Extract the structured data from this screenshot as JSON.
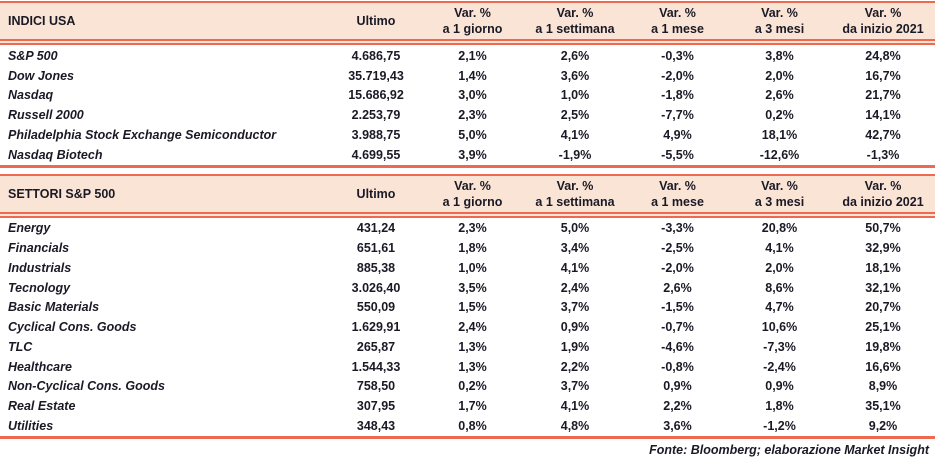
{
  "colors": {
    "header_bg": "#FAE4D5",
    "rule": "#ED6A51",
    "text": "#1A1A26"
  },
  "footer": {
    "source_note": "Fonte: Bloomberg; elaborazione Market Insight"
  },
  "chart_data": [
    {
      "type": "table",
      "title": "INDICI USA",
      "ultimo_label": "Ultimo",
      "var_columns": [
        {
          "line1": "Var. %",
          "line2": "a 1 giorno"
        },
        {
          "line1": "Var. %",
          "line2": "a 1 settimana"
        },
        {
          "line1": "Var. %",
          "line2": "a 1 mese"
        },
        {
          "line1": "Var. %",
          "line2": "a 3 mesi"
        },
        {
          "line1": "Var. %",
          "line2": "da inizio 2021"
        }
      ],
      "rows": [
        {
          "label": "S&P 500",
          "ultimo": "4.686,75",
          "values": [
            "2,1%",
            "2,6%",
            "-0,3%",
            "3,8%",
            "24,8%"
          ]
        },
        {
          "label": "Dow Jones",
          "ultimo": "35.719,43",
          "values": [
            "1,4%",
            "3,6%",
            "-2,0%",
            "2,0%",
            "16,7%"
          ]
        },
        {
          "label": "Nasdaq",
          "ultimo": "15.686,92",
          "values": [
            "3,0%",
            "1,0%",
            "-1,8%",
            "2,6%",
            "21,7%"
          ]
        },
        {
          "label": "Russell 2000",
          "ultimo": "2.253,79",
          "values": [
            "2,3%",
            "2,5%",
            "-7,7%",
            "0,2%",
            "14,1%"
          ]
        },
        {
          "label": "Philadelphia Stock Exchange Semiconductor",
          "ultimo": "3.988,75",
          "values": [
            "5,0%",
            "4,1%",
            "4,9%",
            "18,1%",
            "42,7%"
          ]
        },
        {
          "label": "Nasdaq Biotech",
          "ultimo": "4.699,55",
          "values": [
            "3,9%",
            "-1,9%",
            "-5,5%",
            "-12,6%",
            "-1,3%"
          ]
        }
      ]
    },
    {
      "type": "table",
      "title": "SETTORI S&P 500",
      "ultimo_label": "Ultimo",
      "var_columns": [
        {
          "line1": "Var. %",
          "line2": "a 1 giorno"
        },
        {
          "line1": "Var. %",
          "line2": "a 1 settimana"
        },
        {
          "line1": "Var. %",
          "line2": "a 1 mese"
        },
        {
          "line1": "Var. %",
          "line2": "a 3 mesi"
        },
        {
          "line1": "Var. %",
          "line2": "da inizio 2021"
        }
      ],
      "rows": [
        {
          "label": "Energy",
          "ultimo": "431,24",
          "values": [
            "2,3%",
            "5,0%",
            "-3,3%",
            "20,8%",
            "50,7%"
          ]
        },
        {
          "label": "Financials",
          "ultimo": "651,61",
          "values": [
            "1,8%",
            "3,4%",
            "-2,5%",
            "4,1%",
            "32,9%"
          ]
        },
        {
          "label": "Industrials",
          "ultimo": "885,38",
          "values": [
            "1,0%",
            "4,1%",
            "-2,0%",
            "2,0%",
            "18,1%"
          ]
        },
        {
          "label": "Tecnology",
          "ultimo": "3.026,40",
          "values": [
            "3,5%",
            "2,4%",
            "2,6%",
            "8,6%",
            "32,1%"
          ]
        },
        {
          "label": "Basic Materials",
          "ultimo": "550,09",
          "values": [
            "1,5%",
            "3,7%",
            "-1,5%",
            "4,7%",
            "20,7%"
          ]
        },
        {
          "label": "Cyclical Cons. Goods",
          "ultimo": "1.629,91",
          "values": [
            "2,4%",
            "0,9%",
            "-0,7%",
            "10,6%",
            "25,1%"
          ]
        },
        {
          "label": "TLC",
          "ultimo": "265,87",
          "values": [
            "1,3%",
            "1,9%",
            "-4,6%",
            "-7,3%",
            "19,8%"
          ]
        },
        {
          "label": "Healthcare",
          "ultimo": "1.544,33",
          "values": [
            "1,3%",
            "2,2%",
            "-0,8%",
            "-2,4%",
            "16,6%"
          ]
        },
        {
          "label": "Non-Cyclical Cons. Goods",
          "ultimo": "758,50",
          "values": [
            "0,2%",
            "3,7%",
            "0,9%",
            "0,9%",
            "8,9%"
          ]
        },
        {
          "label": "Real Estate",
          "ultimo": "307,95",
          "values": [
            "1,7%",
            "4,1%",
            "2,2%",
            "1,8%",
            "35,1%"
          ]
        },
        {
          "label": "Utilities",
          "ultimo": "348,43",
          "values": [
            "0,8%",
            "4,8%",
            "3,6%",
            "-1,2%",
            "9,2%"
          ]
        }
      ]
    }
  ]
}
